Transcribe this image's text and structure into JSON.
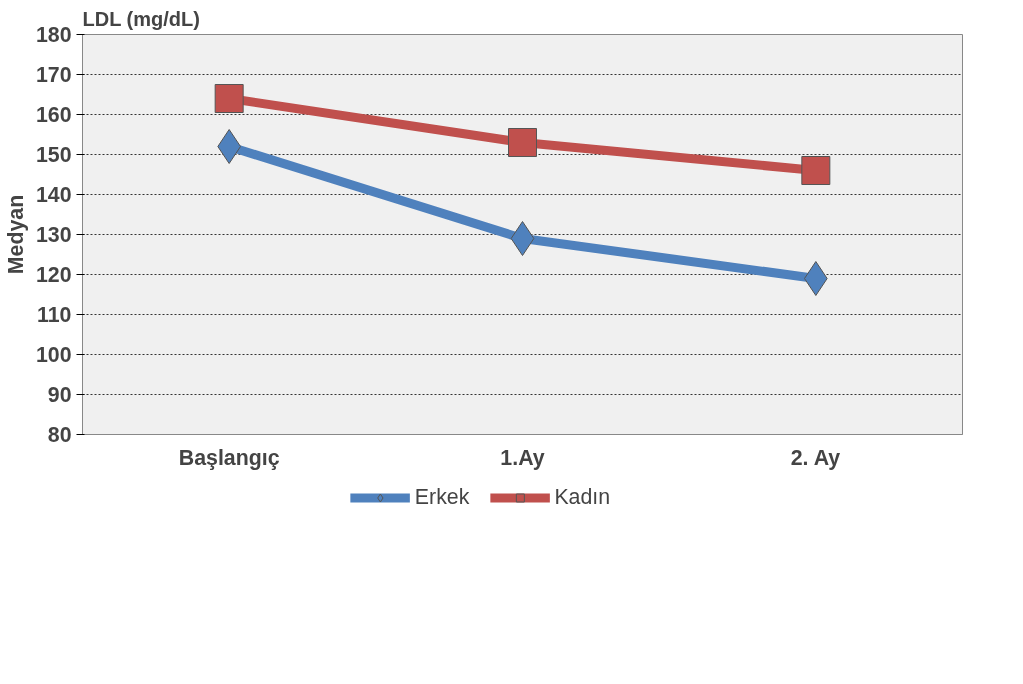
{
  "chart_data": {
    "type": "line",
    "title": "LDL (mg/dL)",
    "ylabel": "Medyan",
    "categories": [
      "Başlangıç",
      "1.Ay",
      "2. Ay"
    ],
    "series": [
      {
        "name": "Erkek",
        "color": "#4f81bd",
        "marker": "diamond",
        "values": [
          152,
          129,
          119
        ]
      },
      {
        "name": "Kadın",
        "color": "#c0504d",
        "marker": "square",
        "values": [
          164,
          153,
          146
        ]
      }
    ],
    "ylim": [
      80,
      180
    ],
    "yticks": [
      80,
      90,
      100,
      110,
      120,
      130,
      140,
      150,
      160,
      170,
      180
    ],
    "grid": "y",
    "legend": "bottom"
  }
}
